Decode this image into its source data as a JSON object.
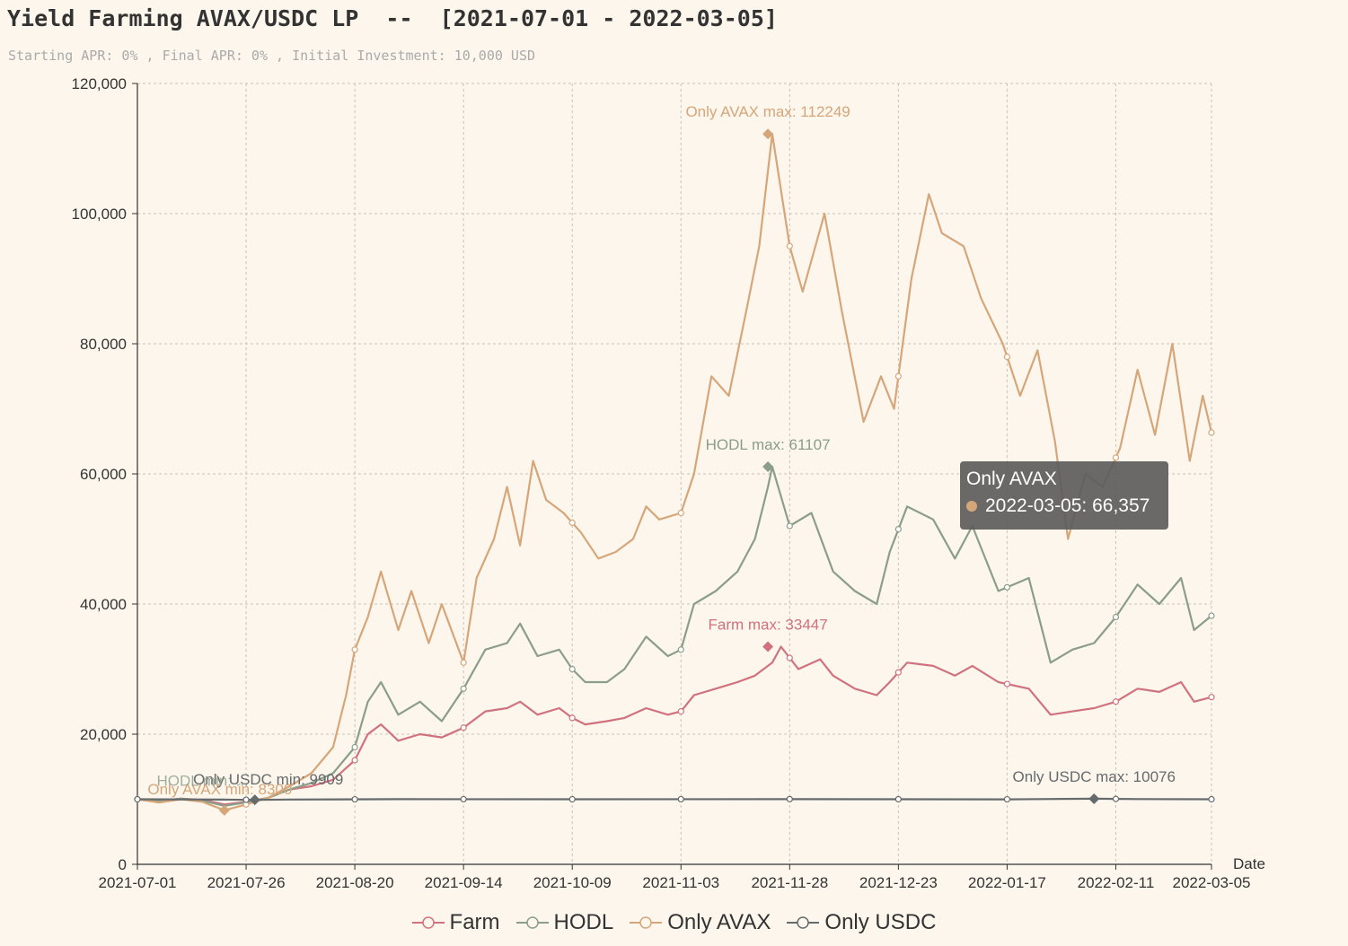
{
  "title": "Yield Farming AVAX/USDC LP  --  [2021-07-01 - 2022-03-05]",
  "subtitle": "Starting APR: 0% , Final APR: 0% , Initial Investment: 10,000 USD",
  "colors": {
    "farm": "#d0727e",
    "hodl": "#8a9e8a",
    "only_avax": "#d5a679",
    "only_usdc": "#656a6c",
    "grid": "#c9c2b6",
    "axis": "#333333",
    "background": "#fdf6ec"
  },
  "chart_data": {
    "type": "line",
    "title": "Yield Farming AVAX/USDC LP  --  [2021-07-01 - 2022-03-05]",
    "xlabel": "Date",
    "ylabel": "",
    "ylim": [
      0,
      120000
    ],
    "y_ticks": [
      "0",
      "20,000",
      "40,000",
      "60,000",
      "80,000",
      "100,000",
      "120,000"
    ],
    "y_tick_values": [
      0,
      20000,
      40000,
      60000,
      80000,
      100000,
      120000
    ],
    "x_ticks": [
      "2021-07-01",
      "2021-07-26",
      "2021-08-20",
      "2021-09-14",
      "2021-10-09",
      "2021-11-03",
      "2021-11-28",
      "2021-12-23",
      "2022-01-17",
      "2022-02-11",
      "2022-03-05"
    ],
    "x_tick_days": [
      0,
      25,
      50,
      75,
      100,
      125,
      150,
      175,
      200,
      225,
      247
    ],
    "x_days_total": 247,
    "grid": true,
    "legend_position": "bottom-center",
    "series": [
      {
        "name": "Farm",
        "color_key": "farm",
        "points": [
          [
            0,
            10000
          ],
          [
            5,
            9800
          ],
          [
            10,
            10100
          ],
          [
            15,
            9900
          ],
          [
            20,
            9200
          ],
          [
            25,
            9600
          ],
          [
            30,
            10200
          ],
          [
            35,
            11500
          ],
          [
            40,
            12000
          ],
          [
            45,
            13000
          ],
          [
            50,
            16000
          ],
          [
            53,
            20000
          ],
          [
            56,
            21500
          ],
          [
            60,
            19000
          ],
          [
            65,
            20000
          ],
          [
            70,
            19500
          ],
          [
            75,
            21000
          ],
          [
            80,
            23500
          ],
          [
            85,
            24000
          ],
          [
            88,
            25000
          ],
          [
            92,
            23000
          ],
          [
            97,
            24000
          ],
          [
            100,
            22500
          ],
          [
            103,
            21500
          ],
          [
            108,
            22000
          ],
          [
            112,
            22500
          ],
          [
            117,
            24000
          ],
          [
            122,
            23000
          ],
          [
            125,
            23500
          ],
          [
            128,
            26000
          ],
          [
            133,
            27000
          ],
          [
            138,
            28000
          ],
          [
            142,
            29000
          ],
          [
            146,
            31000
          ],
          [
            148,
            33447
          ],
          [
            152,
            30000
          ],
          [
            157,
            31500
          ],
          [
            160,
            29000
          ],
          [
            165,
            27000
          ],
          [
            170,
            26000
          ],
          [
            173,
            28000
          ],
          [
            177,
            31000
          ],
          [
            183,
            30500
          ],
          [
            188,
            29000
          ],
          [
            192,
            30500
          ],
          [
            198,
            28000
          ],
          [
            205,
            27000
          ],
          [
            210,
            23000
          ],
          [
            215,
            23500
          ],
          [
            220,
            24000
          ],
          [
            225,
            25000
          ],
          [
            230,
            27000
          ],
          [
            235,
            26500
          ],
          [
            240,
            28000
          ],
          [
            243,
            25000
          ],
          [
            247,
            25700
          ]
        ],
        "max_label": "Farm max: 33447",
        "max_value": 33447,
        "max_day": 145
      },
      {
        "name": "HODL",
        "color_key": "hodl",
        "points": [
          [
            0,
            10000
          ],
          [
            5,
            9700
          ],
          [
            10,
            10100
          ],
          [
            15,
            9800
          ],
          [
            20,
            9000
          ],
          [
            25,
            9500
          ],
          [
            30,
            10200
          ],
          [
            35,
            11500
          ],
          [
            40,
            12500
          ],
          [
            45,
            14000
          ],
          [
            50,
            18000
          ],
          [
            53,
            25000
          ],
          [
            56,
            28000
          ],
          [
            60,
            23000
          ],
          [
            65,
            25000
          ],
          [
            70,
            22000
          ],
          [
            75,
            27000
          ],
          [
            80,
            33000
          ],
          [
            85,
            34000
          ],
          [
            88,
            37000
          ],
          [
            92,
            32000
          ],
          [
            97,
            33000
          ],
          [
            100,
            30000
          ],
          [
            103,
            28000
          ],
          [
            108,
            28000
          ],
          [
            112,
            30000
          ],
          [
            117,
            35000
          ],
          [
            122,
            32000
          ],
          [
            125,
            33000
          ],
          [
            128,
            40000
          ],
          [
            133,
            42000
          ],
          [
            138,
            45000
          ],
          [
            142,
            50000
          ],
          [
            145,
            58000
          ],
          [
            146,
            61107
          ],
          [
            150,
            52000
          ],
          [
            155,
            54000
          ],
          [
            160,
            45000
          ],
          [
            165,
            42000
          ],
          [
            170,
            40000
          ],
          [
            173,
            48000
          ],
          [
            177,
            55000
          ],
          [
            183,
            53000
          ],
          [
            188,
            47000
          ],
          [
            192,
            52000
          ],
          [
            198,
            42000
          ],
          [
            205,
            44000
          ],
          [
            210,
            31000
          ],
          [
            215,
            33000
          ],
          [
            220,
            34000
          ],
          [
            225,
            38000
          ],
          [
            230,
            43000
          ],
          [
            235,
            40000
          ],
          [
            240,
            44000
          ],
          [
            243,
            36000
          ],
          [
            247,
            38200
          ]
        ],
        "max_label": "HODL max: 61107",
        "max_value": 61107,
        "max_day": 145
      },
      {
        "name": "Only AVAX",
        "color_key": "only_avax",
        "points": [
          [
            0,
            10000
          ],
          [
            5,
            9500
          ],
          [
            10,
            10000
          ],
          [
            15,
            9600
          ],
          [
            20,
            8300
          ],
          [
            25,
            9200
          ],
          [
            30,
            10200
          ],
          [
            35,
            12000
          ],
          [
            40,
            14000
          ],
          [
            45,
            18000
          ],
          [
            48,
            26000
          ],
          [
            50,
            33000
          ],
          [
            53,
            38000
          ],
          [
            56,
            45000
          ],
          [
            60,
            36000
          ],
          [
            63,
            42000
          ],
          [
            67,
            34000
          ],
          [
            70,
            40000
          ],
          [
            75,
            31000
          ],
          [
            78,
            44000
          ],
          [
            82,
            50000
          ],
          [
            85,
            58000
          ],
          [
            88,
            49000
          ],
          [
            91,
            62000
          ],
          [
            94,
            56000
          ],
          [
            98,
            54000
          ],
          [
            102,
            51000
          ],
          [
            106,
            47000
          ],
          [
            110,
            48000
          ],
          [
            114,
            50000
          ],
          [
            117,
            55000
          ],
          [
            120,
            53000
          ],
          [
            125,
            54000
          ],
          [
            128,
            60000
          ],
          [
            132,
            75000
          ],
          [
            136,
            72000
          ],
          [
            140,
            85000
          ],
          [
            143,
            95000
          ],
          [
            146,
            112249
          ],
          [
            150,
            95000
          ],
          [
            153,
            88000
          ],
          [
            158,
            100000
          ],
          [
            162,
            85000
          ],
          [
            167,
            68000
          ],
          [
            171,
            75000
          ],
          [
            174,
            70000
          ],
          [
            178,
            90000
          ],
          [
            182,
            103000
          ],
          [
            185,
            97000
          ],
          [
            190,
            95000
          ],
          [
            194,
            87000
          ],
          [
            199,
            80000
          ],
          [
            203,
            72000
          ],
          [
            207,
            79000
          ],
          [
            211,
            65000
          ],
          [
            214,
            50000
          ],
          [
            218,
            60000
          ],
          [
            222,
            58000
          ],
          [
            226,
            64000
          ],
          [
            230,
            76000
          ],
          [
            234,
            66000
          ],
          [
            238,
            80000
          ],
          [
            242,
            62000
          ],
          [
            245,
            72000
          ],
          [
            247,
            66357
          ]
        ],
        "max_label": "Only AVAX max: 112249",
        "max_value": 112249,
        "max_day": 145,
        "min_label": "Only AVAX min: 8300",
        "min_value": 8300,
        "min_day": 20
      },
      {
        "name": "Only USDC",
        "color_key": "only_usdc",
        "points": [
          [
            0,
            10000
          ],
          [
            20,
            9950
          ],
          [
            27,
            9909
          ],
          [
            35,
            9960
          ],
          [
            60,
            10010
          ],
          [
            100,
            10000
          ],
          [
            150,
            10020
          ],
          [
            200,
            9990
          ],
          [
            220,
            10076
          ],
          [
            230,
            10030
          ],
          [
            247,
            10000
          ]
        ],
        "max_label": "Only USDC max: 10076",
        "max_value": 10076,
        "max_day": 220,
        "min_label": "Only USDC min: 9909",
        "min_value": 9909,
        "min_day": 27
      }
    ],
    "overlap_label_hodl_min": "HODL min: ...",
    "tooltip": {
      "series": "Only AVAX",
      "text": "2022-03-05: 66,357"
    }
  },
  "legend": [
    {
      "label": "Farm",
      "color_key": "farm"
    },
    {
      "label": "HODL",
      "color_key": "hodl"
    },
    {
      "label": "Only AVAX",
      "color_key": "only_avax"
    },
    {
      "label": "Only USDC",
      "color_key": "only_usdc"
    }
  ]
}
